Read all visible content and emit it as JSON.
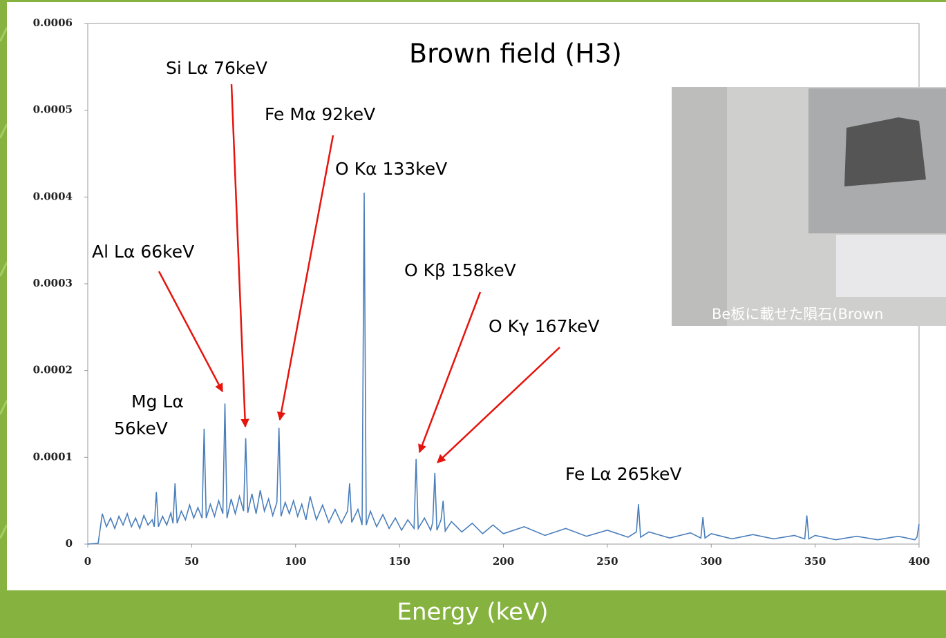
{
  "chart_data": {
    "type": "line",
    "title": "Brown field (H3)",
    "x_label": "Energy (keV)",
    "x": [
      0,
      5,
      7,
      9,
      11,
      13,
      15,
      17,
      19,
      21,
      23,
      25,
      27,
      29,
      31,
      32,
      33,
      34,
      36,
      38,
      40,
      41,
      42,
      43,
      45,
      47,
      49,
      51,
      53,
      55,
      56,
      57,
      59,
      61,
      63,
      65,
      66,
      67,
      69,
      71,
      73,
      75,
      76,
      77,
      79,
      81,
      83,
      85,
      87,
      89,
      91,
      92,
      93,
      95,
      97,
      99,
      101,
      103,
      105,
      107,
      110,
      113,
      116,
      119,
      122,
      125,
      126,
      127,
      130,
      132,
      133,
      134,
      136,
      139,
      142,
      145,
      148,
      151,
      154,
      157,
      158,
      159,
      162,
      165,
      166,
      167,
      168,
      170,
      171,
      172,
      175,
      180,
      185,
      190,
      195,
      200,
      210,
      220,
      230,
      240,
      250,
      260,
      264,
      265,
      266,
      270,
      280,
      290,
      295,
      296,
      297,
      300,
      310,
      320,
      330,
      340,
      345,
      346,
      347,
      350,
      360,
      370,
      380,
      390,
      398,
      399,
      400
    ],
    "series": [
      {
        "color": "#4a7ebb",
        "values": [
          0,
          1e-06,
          3.5e-05,
          2e-05,
          3e-05,
          1.8e-05,
          3.2e-05,
          2.2e-05,
          3.5e-05,
          2e-05,
          3e-05,
          1.8e-05,
          3.3e-05,
          2.2e-05,
          2.8e-05,
          2e-05,
          6e-05,
          2e-05,
          3.2e-05,
          2.2e-05,
          3.6e-05,
          2.4e-05,
          7e-05,
          2.4e-05,
          3.8e-05,
          2.8e-05,
          4.5e-05,
          3e-05,
          4.2e-05,
          3e-05,
          0.000133,
          3e-05,
          4.6e-05,
          3.2e-05,
          5e-05,
          3.5e-05,
          0.000162,
          3e-05,
          5.2e-05,
          3.5e-05,
          5.5e-05,
          3.8e-05,
          0.000122,
          3.6e-05,
          5.8e-05,
          3.5e-05,
          6.2e-05,
          3.8e-05,
          5.2e-05,
          3.3e-05,
          4.8e-05,
          0.000134,
          3.2e-05,
          4.8e-05,
          3.5e-05,
          5e-05,
          3.2e-05,
          4.6e-05,
          2.8e-05,
          5.5e-05,
          2.8e-05,
          4.5e-05,
          2.5e-05,
          4e-05,
          2.4e-05,
          3.8e-05,
          7e-05,
          2.5e-05,
          4e-05,
          2.2e-05,
          0.000405,
          2.2e-05,
          3.8e-05,
          2e-05,
          3.4e-05,
          1.8e-05,
          3e-05,
          1.6e-05,
          2.8e-05,
          1.8e-05,
          9.8e-05,
          1.8e-05,
          3e-05,
          1.6e-05,
          2.5e-05,
          8.2e-05,
          1.6e-05,
          2.8e-05,
          5e-05,
          1.5e-05,
          2.6e-05,
          1.4e-05,
          2.4e-05,
          1.2e-05,
          2.2e-05,
          1.2e-05,
          2e-05,
          1e-05,
          1.8e-05,
          9e-06,
          1.6e-05,
          8e-06,
          1.4e-05,
          4.6e-05,
          8e-06,
          1.4e-05,
          7e-06,
          1.3e-05,
          7e-06,
          3.1e-05,
          7e-06,
          1.2e-05,
          6e-06,
          1.1e-05,
          6e-06,
          1e-05,
          6e-06,
          3.3e-05,
          6e-06,
          1e-05,
          5e-06,
          9e-06,
          5e-06,
          9e-06,
          5e-06,
          8e-06,
          2.3e-05
        ]
      }
    ],
    "xlim": [
      0,
      400
    ],
    "xticks": [
      0,
      50,
      100,
      150,
      200,
      250,
      300,
      350,
      400
    ],
    "ylim": [
      0,
      0.0006
    ],
    "yticks": [
      0,
      0.0001,
      0.0002,
      0.0003,
      0.0004,
      0.0005,
      0.0006
    ],
    "annotations": [
      "Si Lα 76keV",
      "Fe Mα 92keV",
      "O Kα 133keV",
      "Al Lα 66keV",
      "Mg Lα",
      "56keV",
      "O Kβ 158keV",
      "O Kγ 167keV",
      "Fe Lα 265keV"
    ],
    "inset_caption": "Be板に載せた隕石(Brown"
  }
}
